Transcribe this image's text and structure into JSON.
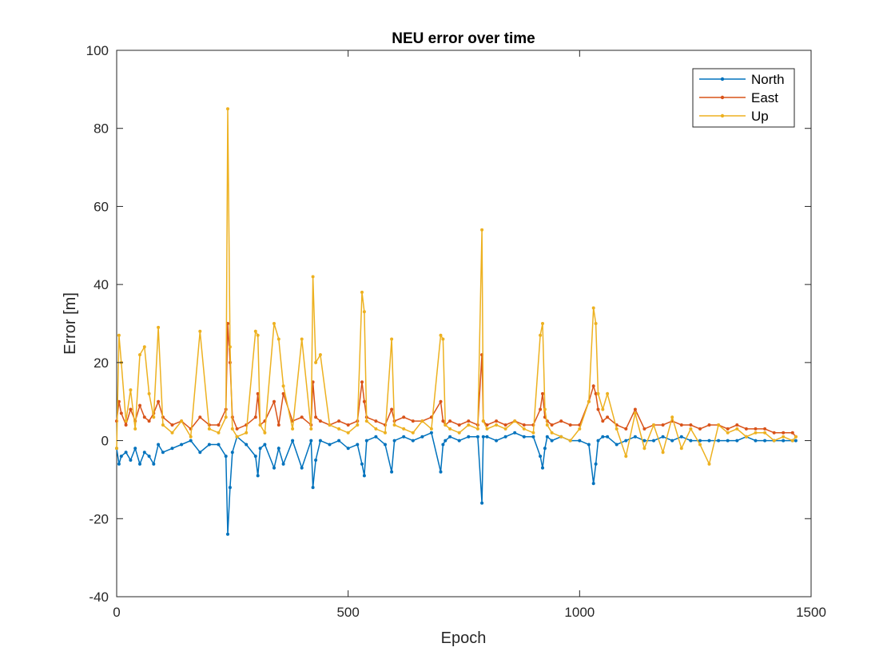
{
  "chart_data": {
    "type": "line",
    "title": "NEU error over time",
    "xlabel": "Epoch",
    "ylabel": "Error [m]",
    "xlim": [
      0,
      1500
    ],
    "ylim": [
      -40,
      100
    ],
    "xticks": [
      0,
      500,
      1000,
      1500
    ],
    "yticks": [
      -40,
      -20,
      0,
      20,
      40,
      60,
      80,
      100
    ],
    "grid": false,
    "box": true,
    "legend_position": "top-right",
    "marker": "dot",
    "series": [
      {
        "name": "North",
        "color": "#0072BD",
        "x": [
          0,
          5,
          10,
          20,
          30,
          40,
          50,
          60,
          70,
          80,
          90,
          100,
          120,
          140,
          160,
          180,
          200,
          220,
          236,
          240,
          245,
          250,
          260,
          280,
          300,
          305,
          310,
          320,
          340,
          350,
          360,
          380,
          400,
          420,
          424,
          430,
          440,
          460,
          480,
          500,
          520,
          530,
          535,
          540,
          560,
          580,
          594,
          600,
          620,
          640,
          660,
          680,
          700,
          705,
          710,
          720,
          740,
          760,
          780,
          789,
          792,
          800,
          820,
          840,
          860,
          880,
          900,
          915,
          920,
          925,
          930,
          940,
          960,
          980,
          1000,
          1020,
          1030,
          1035,
          1040,
          1050,
          1060,
          1080,
          1100,
          1120,
          1140,
          1160,
          1180,
          1200,
          1220,
          1240,
          1260,
          1280,
          1300,
          1320,
          1340,
          1360,
          1380,
          1400,
          1420,
          1440,
          1460,
          1467
        ],
        "y": [
          -2,
          -6,
          -4,
          -3,
          -5,
          -2,
          -6,
          -3,
          -4,
          -6,
          -1,
          -3,
          -2,
          -1,
          0,
          -3,
          -1,
          -1,
          -4,
          -24,
          -12,
          -3,
          1,
          -1,
          -4,
          -9,
          -2,
          -1,
          -7,
          -2,
          -6,
          0,
          -7,
          0,
          -12,
          -5,
          0,
          -1,
          0,
          -2,
          -1,
          -6,
          -9,
          0,
          1,
          -1,
          -8,
          0,
          1,
          0,
          1,
          2,
          -8,
          -1,
          0,
          1,
          0,
          1,
          1,
          -16,
          1,
          1,
          0,
          1,
          2,
          1,
          1,
          -4,
          -7,
          -2,
          1,
          0,
          1,
          0,
          0,
          -1,
          -11,
          -6,
          0,
          1,
          1,
          -1,
          0,
          1,
          0,
          0,
          1,
          0,
          1,
          0,
          0,
          0,
          0,
          0,
          0,
          1,
          0,
          0,
          0,
          0,
          0,
          0
        ]
      },
      {
        "name": "East",
        "color": "#D95319",
        "x": [
          0,
          5,
          10,
          20,
          30,
          40,
          50,
          60,
          70,
          80,
          90,
          100,
          120,
          140,
          160,
          180,
          200,
          220,
          236,
          240,
          245,
          250,
          260,
          280,
          300,
          305,
          310,
          320,
          340,
          350,
          360,
          380,
          400,
          420,
          424,
          430,
          440,
          460,
          480,
          500,
          520,
          530,
          535,
          540,
          560,
          580,
          594,
          600,
          620,
          640,
          660,
          680,
          700,
          705,
          710,
          720,
          740,
          760,
          780,
          789,
          792,
          800,
          820,
          840,
          860,
          880,
          900,
          915,
          920,
          925,
          930,
          940,
          960,
          980,
          1000,
          1020,
          1030,
          1035,
          1040,
          1050,
          1060,
          1080,
          1100,
          1120,
          1140,
          1160,
          1180,
          1200,
          1220,
          1240,
          1260,
          1280,
          1300,
          1320,
          1340,
          1360,
          1380,
          1400,
          1420,
          1440,
          1460,
          1467
        ],
        "y": [
          5,
          10,
          7,
          4,
          8,
          5,
          9,
          6,
          5,
          7,
          10,
          6,
          4,
          5,
          3,
          6,
          4,
          4,
          8,
          30,
          20,
          6,
          3,
          4,
          6,
          12,
          4,
          5,
          10,
          4,
          12,
          5,
          6,
          4,
          15,
          6,
          5,
          4,
          5,
          4,
          5,
          15,
          10,
          6,
          5,
          4,
          8,
          5,
          6,
          5,
          5,
          6,
          10,
          5,
          4,
          5,
          4,
          5,
          4,
          22,
          5,
          4,
          5,
          4,
          5,
          4,
          4,
          8,
          12,
          6,
          5,
          4,
          5,
          4,
          4,
          10,
          14,
          12,
          8,
          5,
          6,
          4,
          3,
          8,
          3,
          4,
          4,
          5,
          4,
          4,
          3,
          4,
          4,
          3,
          4,
          3,
          3,
          3,
          2,
          2,
          2,
          1
        ]
      },
      {
        "name": "Up",
        "color": "#EDB120",
        "x": [
          0,
          5,
          10,
          20,
          30,
          40,
          50,
          60,
          70,
          80,
          90,
          100,
          120,
          140,
          160,
          180,
          200,
          220,
          236,
          240,
          245,
          250,
          260,
          280,
          300,
          305,
          310,
          320,
          340,
          350,
          360,
          380,
          400,
          420,
          424,
          430,
          440,
          460,
          480,
          500,
          520,
          530,
          535,
          540,
          560,
          580,
          594,
          600,
          620,
          640,
          660,
          680,
          700,
          705,
          710,
          720,
          740,
          760,
          780,
          789,
          792,
          800,
          820,
          840,
          860,
          880,
          900,
          915,
          920,
          925,
          930,
          940,
          960,
          980,
          1000,
          1020,
          1030,
          1035,
          1040,
          1050,
          1060,
          1080,
          1100,
          1120,
          1140,
          1160,
          1180,
          1200,
          1220,
          1240,
          1260,
          1280,
          1300,
          1320,
          1340,
          1360,
          1380,
          1400,
          1420,
          1440,
          1460,
          1467
        ],
        "y": [
          -2,
          27,
          20,
          5,
          13,
          3,
          22,
          24,
          12,
          6,
          29,
          4,
          2,
          5,
          1,
          28,
          3,
          2,
          6,
          85,
          24,
          3,
          1,
          2,
          28,
          27,
          4,
          2,
          30,
          26,
          14,
          3,
          26,
          3,
          42,
          20,
          22,
          4,
          3,
          2,
          4,
          38,
          33,
          5,
          3,
          2,
          26,
          4,
          3,
          2,
          5,
          3,
          27,
          26,
          4,
          3,
          2,
          4,
          3,
          54,
          5,
          3,
          4,
          3,
          5,
          3,
          2,
          27,
          30,
          8,
          4,
          2,
          1,
          0,
          3,
          10,
          34,
          30,
          12,
          8,
          12,
          3,
          -4,
          7,
          -2,
          4,
          -3,
          6,
          -2,
          3,
          -1,
          -6,
          4,
          2,
          3,
          1,
          2,
          2,
          0,
          1,
          0,
          1
        ]
      }
    ]
  }
}
